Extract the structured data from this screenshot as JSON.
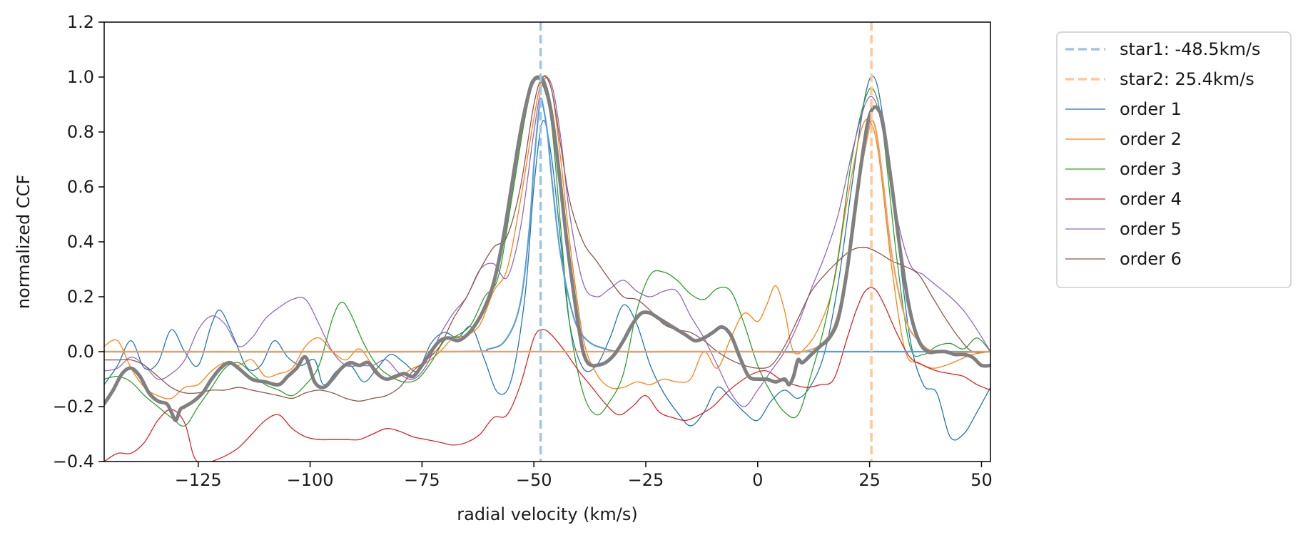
{
  "chart_data": {
    "type": "line",
    "title": "",
    "xlabel": "radial velocity (km/s)",
    "ylabel": "normalized CCF",
    "xlim": [
      -146,
      52
    ],
    "ylim": [
      -0.4,
      1.2
    ],
    "xticks": [
      -125,
      -100,
      -75,
      -50,
      -25,
      0,
      25,
      50
    ],
    "xtick_labels": [
      "−125",
      "−100",
      "−75",
      "−50",
      "−25",
      "0",
      "25",
      "50"
    ],
    "yticks": [
      -0.4,
      -0.2,
      0.0,
      0.2,
      0.4,
      0.6,
      0.8,
      1.0,
      1.2
    ],
    "ytick_labels": [
      "−0.4",
      "−0.2",
      "0.0",
      "0.2",
      "0.4",
      "0.6",
      "0.8",
      "1.0",
      "1.2"
    ],
    "grid": false,
    "legend_position": "outside-right",
    "vlines": [
      {
        "name": "star1: -48.5km/s",
        "x": -48.5,
        "color": "#9fc5e8",
        "style": "dashed"
      },
      {
        "name": "star2: 25.4km/s",
        "x": 25.4,
        "color": "#ffc896",
        "style": "dashed"
      }
    ],
    "series": [
      {
        "name": "order 1",
        "color": "#1f77b4",
        "x": [
          -146,
          -143,
          -140,
          -137,
          -134,
          -131,
          -128,
          -125,
          -122,
          -120,
          -117,
          -114,
          -111,
          -108,
          -105,
          -102,
          -99,
          -97,
          -94,
          -91,
          -88,
          -85,
          -82,
          -79,
          -76,
          -73,
          -70,
          -67,
          -64,
          -61,
          -58,
          -55,
          -52,
          -50,
          -48,
          -46,
          -44,
          -42,
          -39,
          -36,
          -33,
          -30,
          -27,
          -24,
          -21,
          -18,
          -15,
          -12,
          -9,
          -6,
          -3,
          0,
          3,
          6,
          9,
          12,
          15,
          18,
          21,
          24,
          26,
          28,
          31,
          34,
          37,
          40,
          43,
          46,
          49,
          52
        ],
        "values": [
          -0.12,
          -0.05,
          0.04,
          -0.06,
          -0.04,
          0.08,
          0.0,
          -0.05,
          0.1,
          0.15,
          0.05,
          -0.06,
          -0.05,
          0.04,
          -0.02,
          -0.05,
          -0.03,
          -0.12,
          -0.07,
          -0.05,
          -0.11,
          -0.06,
          -0.01,
          -0.04,
          -0.07,
          0.03,
          0.07,
          0.05,
          0.09,
          -0.03,
          -0.15,
          -0.1,
          0.2,
          0.6,
          0.84,
          0.7,
          0.4,
          0.1,
          -0.06,
          -0.05,
          0.05,
          0.17,
          0.1,
          -0.05,
          -0.15,
          -0.22,
          -0.27,
          -0.22,
          -0.13,
          -0.17,
          -0.22,
          -0.25,
          -0.18,
          -0.14,
          -0.17,
          -0.12,
          0.0,
          0.25,
          0.6,
          0.93,
          1.0,
          0.85,
          0.45,
          0.05,
          -0.12,
          -0.15,
          -0.31,
          -0.3,
          -0.22,
          -0.13
        ]
      },
      {
        "name": "order 2",
        "color": "#ff7f0e",
        "x": [
          -146,
          -143,
          -140,
          -137,
          -134,
          -131,
          -128,
          -125,
          -122,
          -119,
          -116,
          -113,
          -110,
          -107,
          -104,
          -101,
          -98,
          -95,
          -92,
          -89,
          -86,
          -83,
          -80,
          -77,
          -74,
          -71,
          -68,
          -65,
          -62,
          -59,
          -56,
          -53,
          -50,
          -48,
          -46,
          -44,
          -42,
          -39,
          -36,
          -33,
          -30,
          -27,
          -24,
          -21,
          -18,
          -15,
          -12,
          -9,
          -6,
          -3,
          0,
          2,
          4,
          6,
          8,
          11,
          14,
          17,
          20,
          23,
          25,
          27,
          30,
          33,
          36,
          39,
          42,
          45,
          48,
          52
        ],
        "values": [
          0.02,
          0.04,
          -0.06,
          -0.13,
          -0.16,
          -0.17,
          -0.13,
          -0.12,
          -0.07,
          -0.04,
          -0.05,
          -0.03,
          -0.09,
          -0.08,
          -0.06,
          0.02,
          0.05,
          0.0,
          -0.03,
          0.01,
          -0.05,
          -0.1,
          -0.09,
          -0.06,
          -0.04,
          0.0,
          0.05,
          0.06,
          0.1,
          0.22,
          0.3,
          0.55,
          0.85,
          1.0,
          0.95,
          0.7,
          0.4,
          0.05,
          -0.08,
          -0.13,
          -0.13,
          -0.11,
          -0.12,
          -0.1,
          -0.11,
          -0.1,
          0.0,
          -0.06,
          0.05,
          0.14,
          0.11,
          0.17,
          0.24,
          0.15,
          0.0,
          0.02,
          0.1,
          0.25,
          0.55,
          0.8,
          0.84,
          0.72,
          0.3,
          0.0,
          -0.04,
          -0.06,
          -0.05,
          -0.03,
          -0.01,
          0.0
        ]
      },
      {
        "name": "order 3",
        "color": "#2ca02c",
        "x": [
          -146,
          -143,
          -140,
          -137,
          -134,
          -131,
          -128,
          -125,
          -122,
          -119,
          -116,
          -113,
          -110,
          -107,
          -104,
          -101,
          -98,
          -95,
          -93,
          -91,
          -88,
          -85,
          -82,
          -79,
          -76,
          -73,
          -70,
          -67,
          -64,
          -61,
          -58,
          -55,
          -52,
          -50,
          -48,
          -46,
          -44,
          -42,
          -39,
          -36,
          -33,
          -30,
          -27,
          -24,
          -21,
          -18,
          -15,
          -12,
          -9,
          -6,
          -3,
          0,
          3,
          6,
          9,
          12,
          15,
          18,
          21,
          24,
          26,
          28,
          31,
          34,
          37,
          40,
          43,
          46,
          49,
          52
        ],
        "values": [
          -0.1,
          -0.09,
          -0.11,
          -0.16,
          -0.2,
          -0.24,
          -0.27,
          -0.2,
          -0.13,
          -0.06,
          -0.04,
          -0.08,
          -0.12,
          -0.14,
          -0.16,
          -0.12,
          -0.05,
          0.12,
          0.18,
          0.14,
          0.03,
          -0.05,
          -0.09,
          -0.11,
          -0.1,
          -0.04,
          0.04,
          0.06,
          0.1,
          0.2,
          0.27,
          0.55,
          0.85,
          0.98,
          0.97,
          0.82,
          0.45,
          0.1,
          -0.15,
          -0.23,
          -0.18,
          -0.08,
          0.15,
          0.28,
          0.29,
          0.26,
          0.21,
          0.19,
          0.23,
          0.22,
          0.1,
          -0.05,
          -0.15,
          -0.22,
          -0.23,
          -0.08,
          0.1,
          0.35,
          0.7,
          0.92,
          0.95,
          0.8,
          0.35,
          0.02,
          -0.01,
          0.02,
          0.03,
          0.01,
          0.05,
          0.0
        ]
      },
      {
        "name": "order 4",
        "color": "#d62728",
        "x": [
          -146,
          -143,
          -140,
          -137,
          -134,
          -131,
          -128,
          -126,
          -124,
          -122,
          -119,
          -116,
          -113,
          -110,
          -107,
          -104,
          -101,
          -98,
          -95,
          -92,
          -89,
          -86,
          -83,
          -80,
          -77,
          -74,
          -71,
          -68,
          -65,
          -62,
          -59,
          -56,
          -53,
          -50,
          -48,
          -46,
          -43,
          -40,
          -37,
          -34,
          -31,
          -28,
          -25,
          -22,
          -19,
          -16,
          -13,
          -10,
          -7,
          -4,
          -1,
          2,
          5,
          8,
          11,
          14,
          17,
          20,
          22,
          24,
          26,
          28,
          31,
          34,
          37,
          40,
          43,
          46,
          49,
          52
        ],
        "values": [
          -0.4,
          -0.37,
          -0.37,
          -0.33,
          -0.25,
          -0.21,
          -0.26,
          -0.38,
          -0.41,
          -0.4,
          -0.38,
          -0.35,
          -0.3,
          -0.25,
          -0.23,
          -0.28,
          -0.31,
          -0.32,
          -0.32,
          -0.32,
          -0.32,
          -0.3,
          -0.28,
          -0.29,
          -0.31,
          -0.32,
          -0.33,
          -0.34,
          -0.33,
          -0.3,
          -0.24,
          -0.23,
          -0.12,
          0.05,
          0.08,
          0.06,
          0.0,
          -0.07,
          -0.13,
          -0.19,
          -0.23,
          -0.2,
          -0.16,
          -0.22,
          -0.24,
          -0.25,
          -0.23,
          -0.2,
          -0.15,
          -0.11,
          -0.08,
          -0.07,
          -0.1,
          -0.12,
          -0.13,
          -0.12,
          -0.1,
          0.05,
          0.15,
          0.22,
          0.23,
          0.18,
          0.07,
          -0.02,
          -0.05,
          -0.07,
          -0.08,
          -0.09,
          -0.12,
          -0.14
        ]
      },
      {
        "name": "order 5",
        "color": "#9467bd",
        "x": [
          -146,
          -143,
          -140,
          -137,
          -134,
          -131,
          -128,
          -125,
          -122,
          -119,
          -116,
          -113,
          -110,
          -107,
          -104,
          -101,
          -98,
          -95,
          -92,
          -89,
          -86,
          -83,
          -80,
          -77,
          -74,
          -71,
          -68,
          -65,
          -62,
          -59,
          -56,
          -53,
          -50,
          -48,
          -46,
          -44,
          -42,
          -39,
          -36,
          -33,
          -30,
          -27,
          -24,
          -21,
          -18,
          -15,
          -12,
          -9,
          -6,
          -3,
          0,
          3,
          6,
          9,
          12,
          15,
          18,
          21,
          24,
          26,
          28,
          31,
          34,
          37,
          40,
          43,
          46,
          49,
          52
        ],
        "values": [
          -0.07,
          -0.06,
          -0.02,
          -0.05,
          -0.1,
          -0.08,
          -0.03,
          0.08,
          0.13,
          0.1,
          0.02,
          0.05,
          0.12,
          0.16,
          0.19,
          0.19,
          0.1,
          0.0,
          -0.05,
          -0.05,
          -0.05,
          -0.03,
          -0.08,
          -0.1,
          -0.05,
          0.06,
          0.14,
          0.2,
          0.3,
          0.32,
          0.27,
          0.45,
          0.8,
          0.98,
          0.97,
          0.78,
          0.5,
          0.25,
          0.2,
          0.23,
          0.26,
          0.22,
          0.2,
          0.22,
          0.22,
          0.13,
          0.05,
          -0.05,
          -0.15,
          -0.2,
          -0.14,
          -0.07,
          0.0,
          0.1,
          0.23,
          0.35,
          0.5,
          0.72,
          0.9,
          0.92,
          0.8,
          0.5,
          0.32,
          0.28,
          0.24,
          0.2,
          0.15,
          0.08,
          0.0
        ]
      },
      {
        "name": "order 6",
        "color": "#8c564b",
        "x": [
          -146,
          -143,
          -140,
          -137,
          -134,
          -131,
          -128,
          -125,
          -122,
          -119,
          -116,
          -113,
          -110,
          -107,
          -104,
          -101,
          -98,
          -95,
          -92,
          -89,
          -86,
          -83,
          -80,
          -77,
          -74,
          -71,
          -68,
          -65,
          -62,
          -59,
          -56,
          -53,
          -50,
          -48,
          -46,
          -44,
          -42,
          -39,
          -36,
          -33,
          -30,
          -27,
          -24,
          -21,
          -18,
          -15,
          -12,
          -9,
          -6,
          -3,
          0,
          3,
          6,
          9,
          12,
          15,
          18,
          21,
          24,
          27,
          30,
          33,
          36,
          39,
          42,
          45,
          48,
          52
        ],
        "values": [
          -0.03,
          -0.03,
          -0.03,
          -0.05,
          -0.09,
          -0.13,
          -0.15,
          -0.15,
          -0.14,
          -0.14,
          -0.13,
          -0.14,
          -0.15,
          -0.16,
          -0.17,
          -0.15,
          -0.14,
          -0.15,
          -0.17,
          -0.18,
          -0.17,
          -0.16,
          -0.13,
          -0.07,
          -0.03,
          0.02,
          0.12,
          0.2,
          0.3,
          0.38,
          0.42,
          0.6,
          0.9,
          1.0,
          0.95,
          0.75,
          0.55,
          0.4,
          0.33,
          0.26,
          0.2,
          0.19,
          0.15,
          0.1,
          0.08,
          0.07,
          0.04,
          0.0,
          -0.03,
          -0.05,
          -0.06,
          -0.05,
          0.02,
          0.12,
          0.22,
          0.28,
          0.33,
          0.37,
          0.38,
          0.36,
          0.33,
          0.31,
          0.28,
          0.2,
          0.12,
          0.05,
          0.0,
          0.0
        ]
      },
      {
        "name": "star1 model",
        "color": "#5a9fd4",
        "legend": false,
        "x": [
          -146,
          -70,
          -60,
          -56,
          -53,
          -51,
          -50,
          -49,
          -48.5,
          -48,
          -47,
          -46,
          -44,
          -41,
          -38,
          -34,
          -30,
          -20,
          0,
          20,
          52
        ],
        "values": [
          0,
          0,
          0.01,
          0.05,
          0.18,
          0.45,
          0.68,
          0.86,
          0.92,
          0.9,
          0.8,
          0.63,
          0.35,
          0.12,
          0.04,
          0.01,
          0,
          0,
          0,
          0,
          0
        ]
      },
      {
        "name": "star2 model",
        "color": "#e5a166",
        "legend": false,
        "x": [
          -146,
          -30,
          0,
          10,
          15,
          18,
          21,
          23,
          24.5,
          25.4,
          26.5,
          28,
          30,
          33,
          36,
          40,
          52
        ],
        "values": [
          0,
          0,
          0,
          0.0,
          0.04,
          0.14,
          0.4,
          0.65,
          0.78,
          0.84,
          0.8,
          0.62,
          0.35,
          0.12,
          0.04,
          0.0,
          0
        ]
      },
      {
        "name": "mean CCF",
        "color": "#808080",
        "legend": false,
        "x": [
          -146,
          -144,
          -142,
          -140,
          -138,
          -136,
          -134,
          -132,
          -131,
          -130,
          -129,
          -128,
          -126,
          -124,
          -122,
          -120,
          -118,
          -116,
          -113,
          -110,
          -107,
          -105,
          -103,
          -101,
          -99,
          -97,
          -95,
          -93,
          -91,
          -89,
          -87,
          -85,
          -83,
          -81,
          -79,
          -77,
          -75,
          -73,
          -71,
          -69,
          -67,
          -65,
          -63,
          -61,
          -59,
          -57,
          -55,
          -53,
          -51,
          -50,
          -49,
          -48,
          -47,
          -46,
          -45,
          -44,
          -43,
          -42,
          -41,
          -40,
          -39,
          -38,
          -37,
          -36,
          -34,
          -32,
          -30,
          -28,
          -26,
          -24,
          -22,
          -20,
          -18,
          -16,
          -14,
          -12,
          -10,
          -8,
          -6,
          -4,
          -2,
          0,
          2,
          4,
          6,
          7,
          8,
          9,
          10,
          12,
          14,
          16,
          18,
          20,
          22,
          24,
          25,
          26,
          27,
          28,
          30,
          32,
          34,
          36,
          38,
          40,
          42,
          44,
          46,
          48,
          50,
          52
        ],
        "values": [
          -0.19,
          -0.14,
          -0.08,
          -0.06,
          -0.09,
          -0.15,
          -0.18,
          -0.19,
          -0.22,
          -0.25,
          -0.21,
          -0.2,
          -0.18,
          -0.15,
          -0.1,
          -0.06,
          -0.04,
          -0.06,
          -0.1,
          -0.11,
          -0.12,
          -0.09,
          -0.06,
          -0.02,
          -0.11,
          -0.13,
          -0.1,
          -0.06,
          -0.04,
          -0.05,
          -0.04,
          -0.08,
          -0.1,
          -0.09,
          -0.08,
          -0.09,
          -0.05,
          0.0,
          0.04,
          0.05,
          0.04,
          0.06,
          0.1,
          0.16,
          0.25,
          0.4,
          0.6,
          0.8,
          0.95,
          0.99,
          1.0,
          0.99,
          0.94,
          0.86,
          0.74,
          0.6,
          0.45,
          0.32,
          0.2,
          0.09,
          0.0,
          -0.04,
          -0.05,
          -0.05,
          -0.04,
          -0.01,
          0.04,
          0.1,
          0.14,
          0.14,
          0.12,
          0.1,
          0.08,
          0.06,
          0.04,
          0.05,
          0.07,
          0.09,
          0.06,
          -0.02,
          -0.09,
          -0.1,
          -0.1,
          -0.11,
          -0.1,
          -0.12,
          -0.09,
          -0.03,
          -0.04,
          -0.01,
          0.02,
          0.05,
          0.12,
          0.3,
          0.55,
          0.78,
          0.86,
          0.89,
          0.88,
          0.83,
          0.6,
          0.35,
          0.15,
          0.04,
          0.0,
          0.0,
          0.0,
          -0.01,
          -0.01,
          -0.02,
          -0.05,
          -0.05
        ]
      }
    ]
  }
}
